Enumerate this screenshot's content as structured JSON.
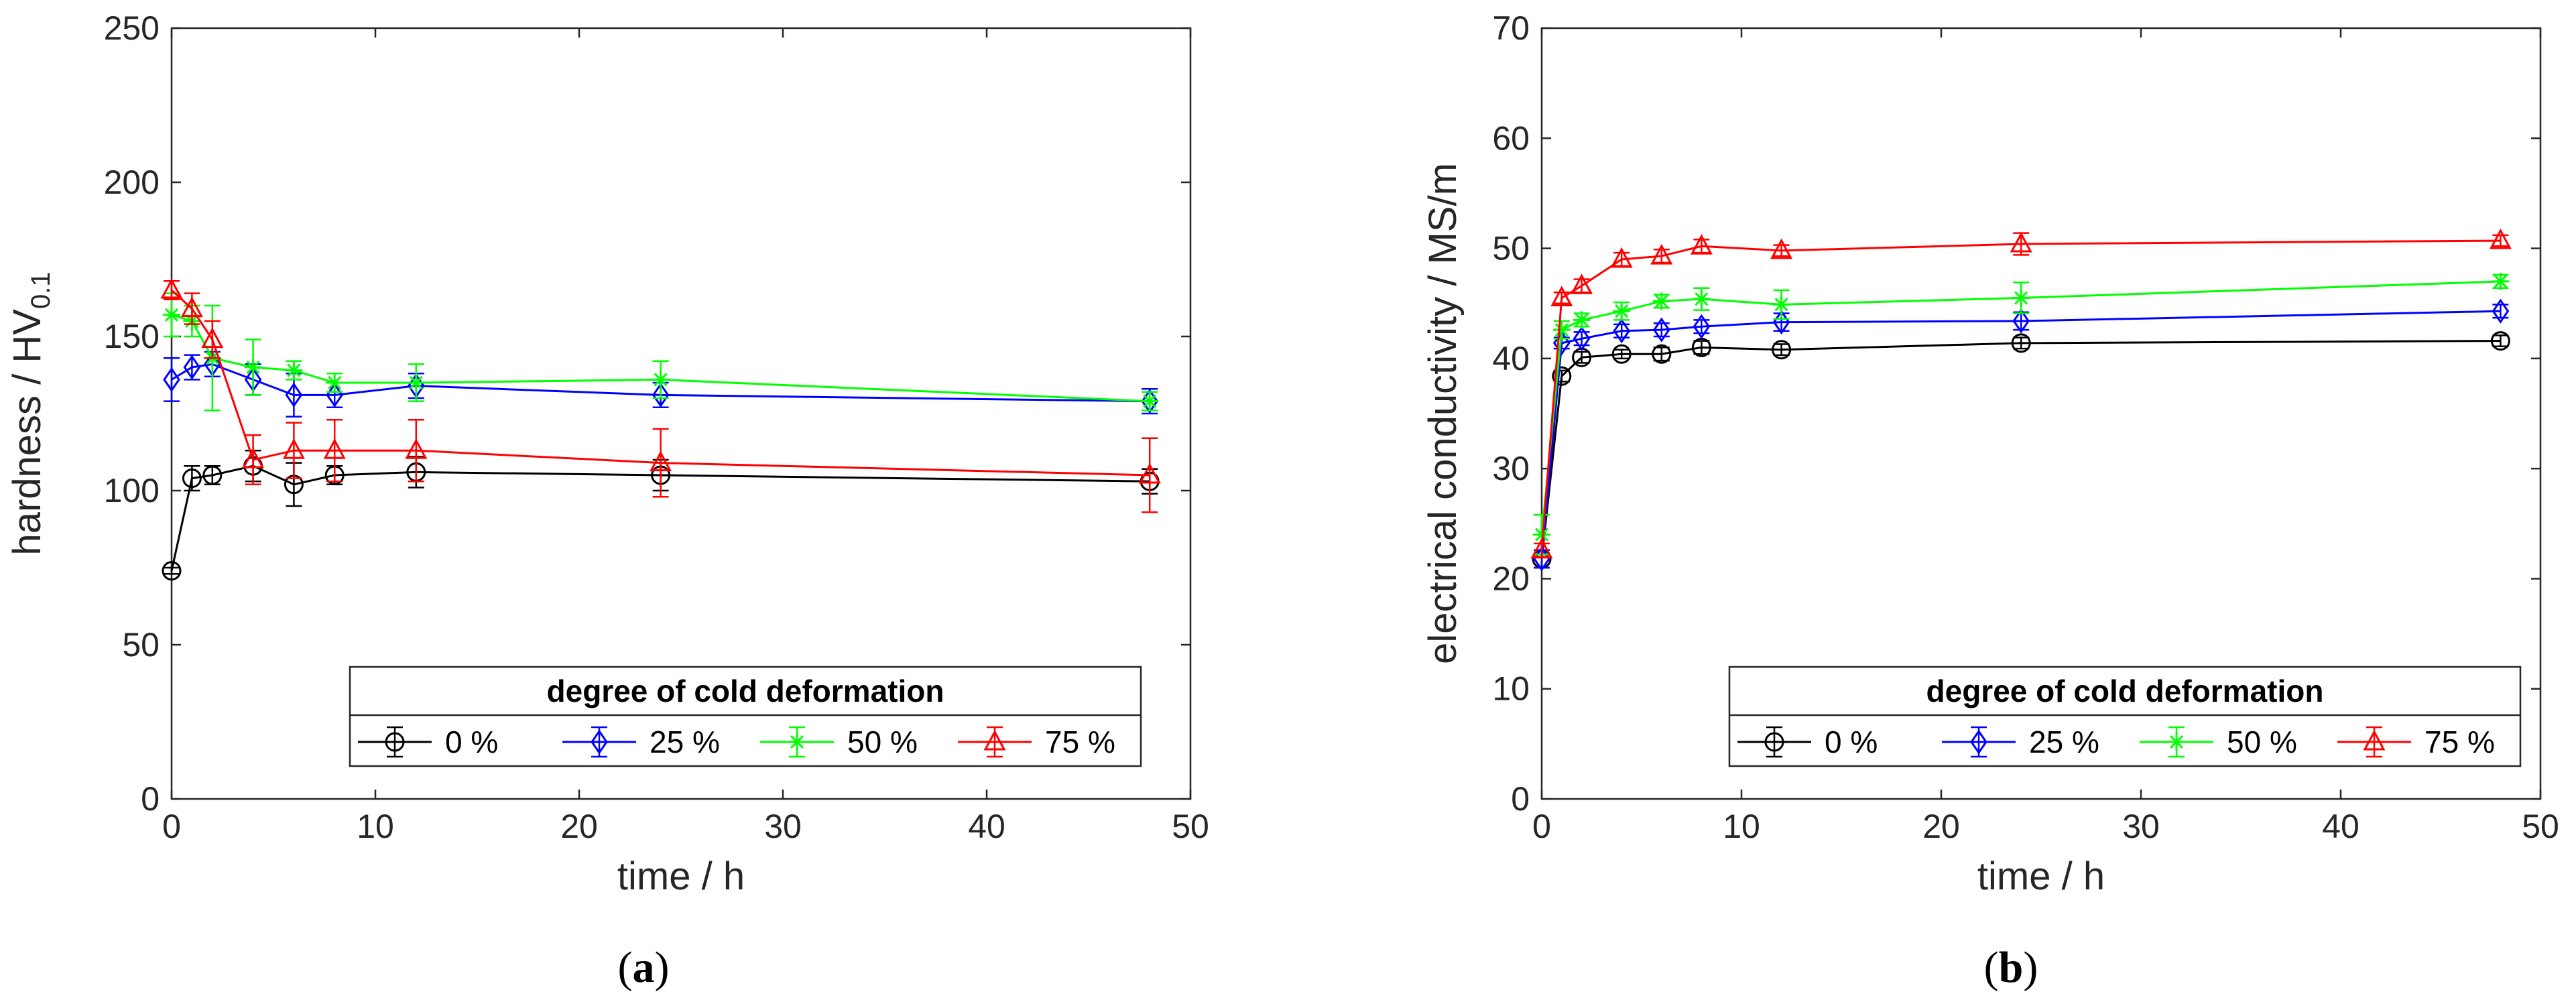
{
  "chart_data": [
    {
      "type": "line",
      "panel_label": "a",
      "xlabel": "time / h",
      "ylabel_main": "hardness / HV",
      "ylabel_sub": "0.1",
      "xlim": [
        0,
        50
      ],
      "ylim": [
        0,
        250
      ],
      "xticks": [
        0,
        10,
        20,
        30,
        40,
        50
      ],
      "yticks": [
        0,
        50,
        100,
        150,
        200,
        250
      ],
      "legend_title": "degree of cold deformation",
      "legend_position": "bottom-right",
      "series": [
        {
          "name": "0 %",
          "color": "#000000",
          "marker": "circle",
          "x": [
            0,
            1,
            2,
            4,
            6,
            8,
            12,
            24,
            48
          ],
          "y": [
            74,
            104,
            105,
            108,
            102,
            105,
            106,
            105,
            103
          ],
          "err": [
            1,
            4,
            3,
            5,
            7,
            3,
            5,
            5,
            4
          ]
        },
        {
          "name": "25 %",
          "color": "#0000ff",
          "marker": "diamond",
          "x": [
            0,
            1,
            2,
            4,
            6,
            8,
            12,
            24,
            48
          ],
          "y": [
            136,
            140,
            141,
            136,
            131,
            131,
            134,
            131,
            129
          ],
          "err": [
            7,
            4,
            4,
            5,
            7,
            4,
            4,
            4,
            4
          ]
        },
        {
          "name": "50 %",
          "color": "#00ff00",
          "marker": "star",
          "x": [
            0,
            1,
            2,
            4,
            6,
            8,
            12,
            24,
            48
          ],
          "y": [
            157,
            155,
            143,
            140,
            139,
            135,
            135,
            136,
            129
          ],
          "err": [
            7,
            5,
            17,
            9,
            3,
            3,
            6,
            6,
            3
          ]
        },
        {
          "name": "75 %",
          "color": "#ff0000",
          "marker": "triangle",
          "x": [
            0,
            1,
            2,
            4,
            6,
            8,
            12,
            24,
            48
          ],
          "y": [
            165,
            159,
            149,
            110,
            113,
            113,
            113,
            109,
            105
          ],
          "err": [
            3,
            5,
            6,
            8,
            9,
            10,
            10,
            11,
            12
          ]
        }
      ]
    },
    {
      "type": "line",
      "panel_label": "b",
      "xlabel": "time / h",
      "ylabel_main": "electrical conductivity / MS/m",
      "ylabel_sub": "",
      "xlim": [
        0,
        50
      ],
      "ylim": [
        0,
        70
      ],
      "xticks": [
        0,
        10,
        20,
        30,
        40,
        50
      ],
      "yticks": [
        0,
        10,
        20,
        30,
        40,
        50,
        60,
        70
      ],
      "legend_title": "degree of cold deformation",
      "legend_position": "bottom-right",
      "series": [
        {
          "name": "0 %",
          "color": "#000000",
          "marker": "circle",
          "x": [
            0,
            1,
            2,
            4,
            6,
            8,
            12,
            24,
            48
          ],
          "y": [
            21.8,
            38.4,
            40.1,
            40.4,
            40.4,
            41.0,
            40.8,
            41.4,
            41.6
          ],
          "err": [
            0.8,
            0.5,
            0.5,
            0.4,
            0.6,
            0.6,
            0.5,
            0.5,
            0.5
          ]
        },
        {
          "name": "25 %",
          "color": "#0000ff",
          "marker": "diamond",
          "x": [
            0,
            1,
            2,
            4,
            6,
            8,
            12,
            24,
            48
          ],
          "y": [
            21.8,
            41.4,
            41.8,
            42.5,
            42.6,
            42.9,
            43.3,
            43.4,
            44.3
          ],
          "err": [
            0.8,
            0.5,
            0.6,
            0.6,
            0.6,
            0.6,
            0.8,
            0.8,
            0.6
          ]
        },
        {
          "name": "50 %",
          "color": "#00ff00",
          "marker": "star",
          "x": [
            0,
            1,
            2,
            4,
            6,
            8,
            12,
            24,
            48
          ],
          "y": [
            24.0,
            42.6,
            43.5,
            44.3,
            45.2,
            45.4,
            44.9,
            45.5,
            47.0
          ],
          "err": [
            1.8,
            0.8,
            0.6,
            0.8,
            0.6,
            1.0,
            1.3,
            1.4,
            0.6
          ]
        },
        {
          "name": "75 %",
          "color": "#ff0000",
          "marker": "triangle",
          "x": [
            0,
            1,
            2,
            4,
            6,
            8,
            12,
            24,
            48
          ],
          "y": [
            22.6,
            45.5,
            46.6,
            49.0,
            49.3,
            50.2,
            49.8,
            50.4,
            50.7
          ],
          "err": [
            0.6,
            0.5,
            0.6,
            0.6,
            0.6,
            0.6,
            0.5,
            1.0,
            0.5
          ]
        }
      ]
    }
  ]
}
